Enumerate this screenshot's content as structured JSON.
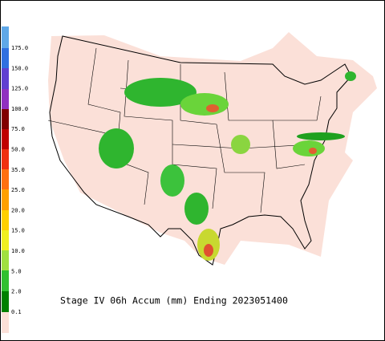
{
  "title": "Stage IV 06h Accum (mm) Ending 2023051400",
  "legend": {
    "labels": [
      "175.0",
      "150.0",
      "125.0",
      "100.0",
      "75.0",
      "50.0",
      "35.0",
      "25.0",
      "20.0",
      "15.0",
      "10.0",
      "5.0",
      "2.0",
      "0.1"
    ]
  }
}
